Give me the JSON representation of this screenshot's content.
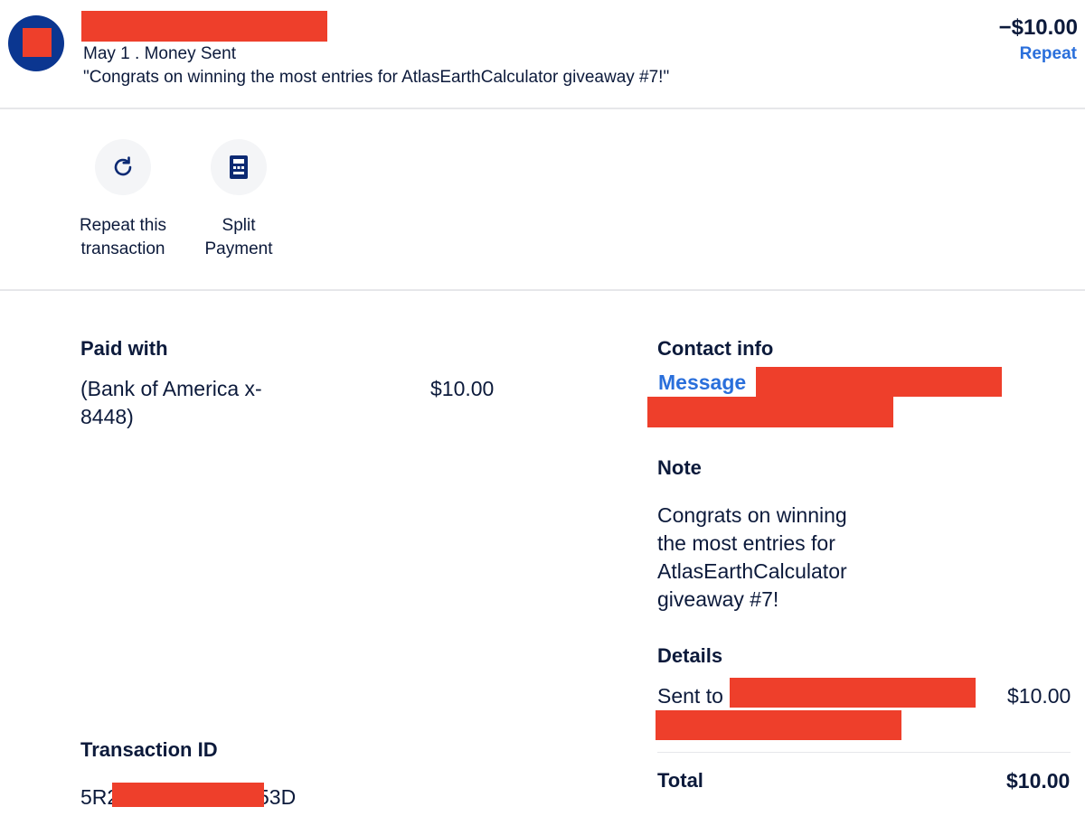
{
  "header": {
    "date_type": "May 1 . Money Sent",
    "message": "\"Congrats on winning the most entries for AtlasEarthCalculator giveaway #7!\"",
    "amount": "−$10.00",
    "repeat_label": "Repeat"
  },
  "actions": {
    "repeat": {
      "line1": "Repeat this",
      "line2": "transaction"
    },
    "split": {
      "line1": "Split",
      "line2": "Payment"
    }
  },
  "paid_with": {
    "heading": "Paid with",
    "source_line1": "(Bank of America x-",
    "source_line2": "8448)",
    "amount": "$10.00"
  },
  "contact": {
    "heading": "Contact info",
    "message_label": "Message"
  },
  "note": {
    "heading": "Note",
    "lines": [
      "Congrats on winning",
      "the most entries for",
      "AtlasEarthCalculator",
      "giveaway #7!"
    ]
  },
  "details": {
    "heading": "Details",
    "sent_to_label": "Sent to",
    "sent_amount": "$10.00",
    "total_label": "Total",
    "total_amount": "$10.00"
  },
  "transaction": {
    "heading": "Transaction ID",
    "id_prefix": "5R2",
    "id_suffix": "53D"
  },
  "colors": {
    "primary_text": "#0c1a3b",
    "link": "#2a6fdb",
    "redaction": "#ee3f2b",
    "avatar": "#0b3690"
  }
}
